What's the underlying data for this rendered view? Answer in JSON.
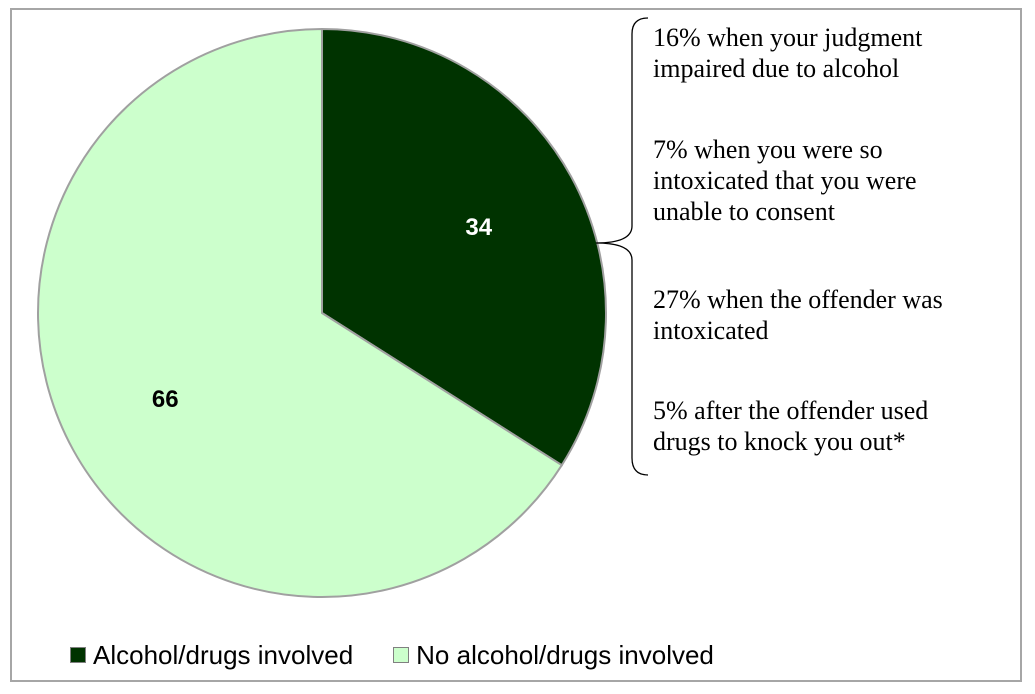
{
  "chart_data": {
    "type": "pie",
    "slices": [
      {
        "label": "Alcohol/drugs involved",
        "value": 34,
        "color": "#003300"
      },
      {
        "label": "No alcohol/drugs involved",
        "value": 66,
        "color": "#ccffcc"
      }
    ],
    "data_labels": [
      "34",
      "66"
    ],
    "legend": {
      "position": "bottom",
      "entries": [
        "Alcohol/drugs involved",
        "No alcohol/drugs involved"
      ]
    },
    "annotations": [
      "16% when your judgment\nimpaired due to alcohol",
      "7% when you were so\nintoxicated that you were\nunable to consent",
      "27% when the offender was\nintoxicated",
      "5% after the offender used\ndrugs to knock you out*"
    ],
    "annotation_bracket_target": "Alcohol/drugs involved"
  }
}
